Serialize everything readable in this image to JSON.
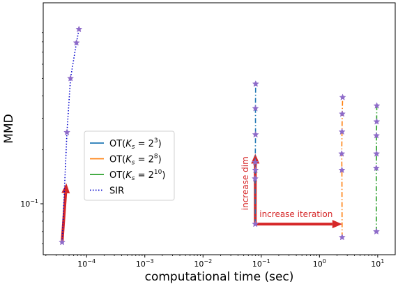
{
  "chart_data": {
    "type": "line",
    "xlabel": "computational time (sec)",
    "ylabel": "MMD",
    "xscale": "log",
    "yscale": "log",
    "xlim": [
      1.8e-05,
      20
    ],
    "ylim": [
      0.052,
      1.32
    ],
    "xticks": [
      {
        "value": 0.0001,
        "base": "10",
        "exp": "−4"
      },
      {
        "value": 0.001,
        "base": "10",
        "exp": "−3"
      },
      {
        "value": 0.01,
        "base": "10",
        "exp": "−2"
      },
      {
        "value": 0.1,
        "base": "10",
        "exp": "−1"
      },
      {
        "value": 1,
        "base": "10",
        "exp": "0"
      },
      {
        "value": 10,
        "base": "10",
        "exp": "1"
      }
    ],
    "yticks": [
      {
        "value": 0.1,
        "base": "10",
        "exp": "−1"
      }
    ],
    "yminor": [
      0.06,
      0.07,
      0.08,
      0.09,
      0.2,
      0.3,
      0.4,
      0.5,
      0.6,
      0.7,
      0.8,
      0.9
    ],
    "grid": false,
    "legend_position": "center-left",
    "legend": [
      {
        "series": "OT2",
        "text": "OT(",
        "sub": "s",
        "rest": " = 2",
        "sup": "3",
        "close": ")"
      },
      {
        "series": "OT8",
        "text": "OT(",
        "sub": "s",
        "rest": " = 2",
        "sup": "8",
        "close": ")"
      },
      {
        "series": "OT10",
        "text": "OT(",
        "sub": "s",
        "rest": " = 2",
        "sup": "10",
        "close": ")"
      },
      {
        "series": "SIR",
        "text": "SIR"
      }
    ],
    "series": [
      {
        "id": "OT2",
        "color": "#1f77b4",
        "style": "dashdot",
        "x": [
          0.079,
          0.0785,
          0.0795,
          0.0788,
          0.0798,
          0.0795,
          0.0802
        ],
        "y": [
          0.077,
          0.138,
          0.154,
          0.17,
          0.243,
          0.34,
          0.466
        ]
      },
      {
        "id": "OT8",
        "color": "#ff7f0e",
        "style": "dashdot",
        "x": [
          2.45,
          2.43,
          2.41,
          2.44,
          2.46,
          2.5
        ],
        "y": [
          0.065,
          0.154,
          0.19,
          0.252,
          0.317,
          0.392
        ]
      },
      {
        "id": "OT10",
        "color": "#2ca02c",
        "style": "dashdot",
        "x": [
          9.5,
          9.45,
          9.55,
          9.52,
          9.6,
          9.65
        ],
        "y": [
          0.07,
          0.158,
          0.19,
          0.24,
          0.287,
          0.352
        ]
      },
      {
        "id": "SIR",
        "color": "#0000cc",
        "style": "dotted",
        "x": [
          3.8e-05,
          4.6e-05,
          5.3e-05,
          6.7e-05,
          7.4e-05
        ],
        "y": [
          0.061,
          0.25,
          0.5,
          0.79,
          0.94
        ]
      }
    ],
    "marker": {
      "shape": "star",
      "color": "#8e6bc9"
    },
    "annotations": [
      {
        "text": "increase dim",
        "color": "#d62728",
        "orientation": "vertical"
      },
      {
        "text": "increase iteration",
        "color": "#d62728",
        "orientation": "horizontal"
      }
    ],
    "arrows": [
      {
        "from": [
          3.8e-05,
          0.061
        ],
        "to": [
          4.5e-05,
          0.13
        ],
        "color": "#d62728"
      },
      {
        "from": [
          0.079,
          0.077
        ],
        "to": [
          0.079,
          0.19
        ],
        "color": "#d62728"
      },
      {
        "from": [
          0.079,
          0.077
        ],
        "to": [
          2.45,
          0.077
        ],
        "color": "#d62728"
      }
    ],
    "legend_symbol": "K"
  }
}
